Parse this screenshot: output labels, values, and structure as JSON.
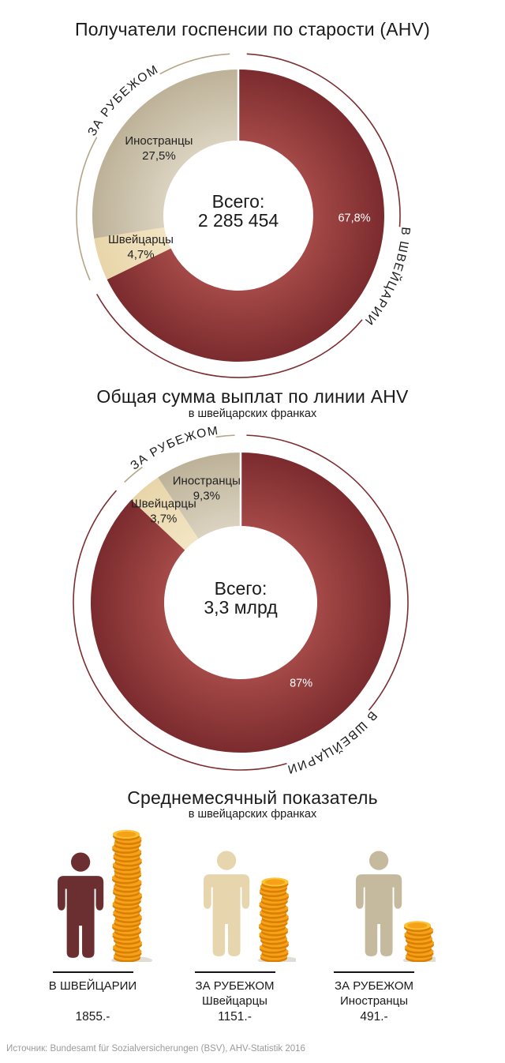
{
  "source_note": "Источник: Bundesamt für Sozialversicherungen (BSV), AHV-Statistik 2016",
  "colors": {
    "text": "#1a1a1a",
    "muted_text": "#9b9b9b",
    "domestic_inner": "#a54a48",
    "domestic_outer": "#7b2b2e",
    "domestic_arc": "#7c2d2f",
    "abroad_foreign_inner": "#dbd3c1",
    "abroad_foreign_outer": "#bdb298",
    "abroad_swiss_inner": "#f3e5c4",
    "abroad_swiss_outer": "#e8d5a9",
    "abroad_arc": "#b3a585",
    "slice_label": "#222222",
    "slice_label_on_dark": "#ffffff",
    "coin_side": "#f6a117",
    "coin_rim": "#d87f04",
    "coin_top": "#fcc232",
    "coin_top_inner": "#f6a117",
    "person_domestic": "#6b2f31",
    "person_abroad_swiss": "#e6d5ad",
    "person_abroad_foreign": "#c5b99e"
  },
  "chart_data": [
    {
      "type": "pie",
      "variant": "donut",
      "title": "Получатели госпенсии по старости (AHV)",
      "center": {
        "label": "Всего:",
        "value": "2 285 454"
      },
      "legend_position": "curved-arc-labels",
      "segments": [
        {
          "name": "В Швейцарии",
          "percent": 67.8,
          "display": "67,8%",
          "name_in_slice": false,
          "kind": "domestic"
        },
        {
          "name": "Швейцарцы",
          "percent": 4.7,
          "display": "4,7%",
          "name_in_slice": true,
          "kind": "abroad_swiss"
        },
        {
          "name": "Иностранцы",
          "percent": 27.5,
          "display": "27,5%",
          "name_in_slice": true,
          "kind": "abroad_foreign"
        }
      ],
      "arc_labels": [
        {
          "text": "В ШВЕЙЦАРИИ",
          "kind": "domestic"
        },
        {
          "text": "ЗА РУБЕЖОМ",
          "kind": "abroad"
        }
      ]
    },
    {
      "type": "pie",
      "variant": "donut",
      "title": "Общая сумма выплат по линии AHV",
      "subtitle": "в швейцарских франках",
      "center": {
        "label": "Всего:",
        "value": "3,3 млрд"
      },
      "legend_position": "curved-arc-labels",
      "segments": [
        {
          "name": "В Швейцарии",
          "percent": 87,
          "display": "87%",
          "name_in_slice": false,
          "kind": "domestic"
        },
        {
          "name": "Швейцарцы",
          "percent": 3.7,
          "display": "3,7%",
          "name_in_slice": true,
          "kind": "abroad_swiss"
        },
        {
          "name": "Иностранцы",
          "percent": 9.3,
          "display": "9,3%",
          "name_in_slice": true,
          "kind": "abroad_foreign"
        }
      ],
      "arc_labels": [
        {
          "text": "В ШВЕЙЦАРИИ",
          "kind": "domestic"
        },
        {
          "text": "ЗА РУБЕЖОМ",
          "kind": "abroad"
        }
      ]
    },
    {
      "type": "pictograph",
      "title": "Среднемесячный показатель",
      "subtitle": "в швейцарских франках",
      "items": [
        {
          "label_lines": [
            "В ШВЕЙЦАРИИ"
          ],
          "value": 1855,
          "display": "1855.-",
          "person_kind": "domestic"
        },
        {
          "label_lines": [
            "ЗА РУБЕЖОМ",
            "Швейцарцы"
          ],
          "value": 1151,
          "display": "1151.-",
          "person_kind": "abroad_swiss"
        },
        {
          "label_lines": [
            "ЗА РУБЕЖОМ",
            "Иностранцы"
          ],
          "value": 491,
          "display": "491.-",
          "person_kind": "abroad_foreign"
        }
      ]
    }
  ]
}
